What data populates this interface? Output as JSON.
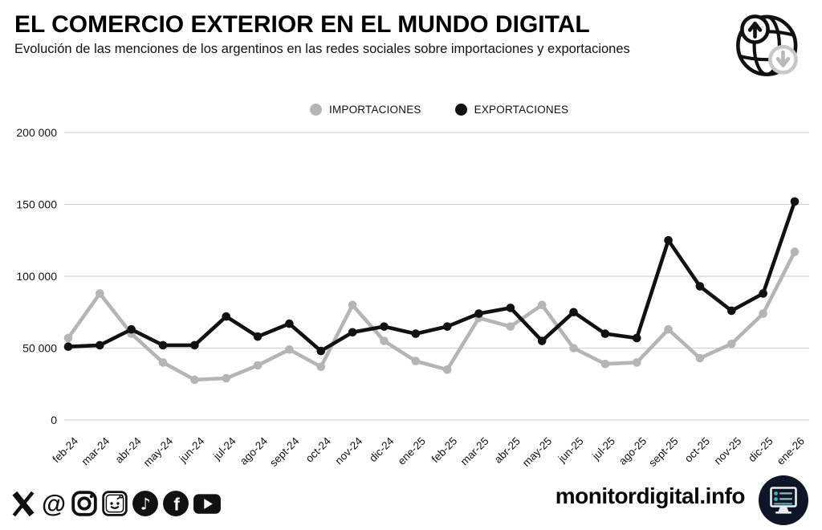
{
  "header": {
    "title": "EL COMERCIO EXTERIOR EN EL MUNDO DIGITAL",
    "subtitle": "Evolución de las menciones de los argentinos en las redes sociales sobre importaciones y exportaciones"
  },
  "chart_data": {
    "type": "line",
    "title": "EL COMERCIO EXTERIOR EN EL MUNDO DIGITAL",
    "subtitle": "Evolución de las menciones de los argentinos en las redes sociales sobre importaciones y exportaciones",
    "categories": [
      "feb-24",
      "mar-24",
      "abr-24",
      "may-24",
      "jun-24",
      "jul-24",
      "ago-24",
      "sept-24",
      "oct-24",
      "nov-24",
      "dic-24",
      "ene-25",
      "feb-25",
      "mar-25",
      "abr-25",
      "may-25",
      "jun-25",
      "jul-25",
      "ago-25",
      "sept-25",
      "oct-25",
      "nov-25",
      "dic-25",
      "ene-26"
    ],
    "series": [
      {
        "name": "IMPORTACIONES",
        "color": "#b5b5b5",
        "values": [
          57000,
          88000,
          60000,
          40000,
          28000,
          29000,
          38000,
          49000,
          37000,
          80000,
          55000,
          41000,
          35000,
          71000,
          65000,
          80000,
          50000,
          39000,
          40000,
          63000,
          43000,
          53000,
          74000,
          117000
        ]
      },
      {
        "name": "EXPORTACIONES",
        "color": "#111111",
        "values": [
          51000,
          52000,
          63000,
          52000,
          52000,
          72000,
          58000,
          67000,
          48000,
          61000,
          65000,
          60000,
          65000,
          74000,
          78000,
          55000,
          75000,
          60000,
          57000,
          125000,
          93000,
          76000,
          88000,
          152000
        ]
      }
    ],
    "xlabel": "",
    "ylabel": "",
    "ylim": [
      0,
      200000
    ],
    "ytick_step": 50000,
    "ytick_labels": [
      "0",
      "50 000",
      "100 000",
      "150 000",
      "200 000"
    ],
    "grid": true,
    "legend_position": "top"
  },
  "footer": {
    "social_icons": [
      "x-icon",
      "threads-icon",
      "instagram-icon",
      "reddit-icon",
      "tiktok-icon",
      "facebook-icon",
      "youtube-icon"
    ],
    "brand": "monitordigital.info"
  },
  "colors": {
    "importaciones_line": "#b5b5b5",
    "exportaciones_line": "#111111",
    "gridline": "#d2d2d2",
    "brand_logo_bg": "#0d1526",
    "brand_logo_teal": "#2fb7b7"
  }
}
